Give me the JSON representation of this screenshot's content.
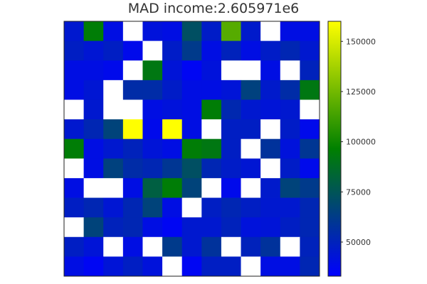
{
  "chart_data": {
    "type": "heatmap",
    "title": "MAD income:2.605971e6",
    "rows": 13,
    "cols": 13,
    "values": [
      [
        45000,
        95000,
        40000,
        null,
        42000,
        40000,
        72000,
        47000,
        118000,
        46000,
        null,
        40000,
        40000
      ],
      [
        48000,
        44000,
        48000,
        38000,
        null,
        47000,
        62000,
        40000,
        50000,
        40000,
        47000,
        52000,
        45000
      ],
      [
        40000,
        40000,
        38000,
        null,
        92000,
        43000,
        36000,
        42000,
        null,
        null,
        40000,
        null,
        50000
      ],
      [
        40000,
        44000,
        null,
        55000,
        55000,
        47000,
        40000,
        40000,
        43000,
        65000,
        46000,
        55000,
        92000
      ],
      [
        null,
        45000,
        null,
        null,
        40000,
        42000,
        40000,
        95000,
        53000,
        45000,
        43000,
        45000,
        null
      ],
      [
        45000,
        52000,
        66000,
        160000,
        38000,
        160000,
        40000,
        null,
        48000,
        48000,
        null,
        47000,
        38000
      ],
      [
        95000,
        40000,
        45000,
        50000,
        43000,
        40000,
        95000,
        92000,
        48000,
        null,
        58000,
        42000,
        60000
      ],
      [
        null,
        40000,
        65000,
        55000,
        52000,
        60000,
        72000,
        52000,
        47000,
        44000,
        null,
        47000,
        38000
      ],
      [
        40000,
        null,
        null,
        40000,
        80000,
        95000,
        66000,
        null,
        38000,
        null,
        46000,
        66000,
        62000
      ],
      [
        48000,
        52000,
        44000,
        52000,
        66000,
        40000,
        null,
        48000,
        52000,
        48000,
        45000,
        45000,
        52000
      ],
      [
        null,
        66000,
        50000,
        52000,
        40000,
        36000,
        45000,
        45000,
        50000,
        42000,
        43000,
        48000,
        52000
      ],
      [
        48000,
        43000,
        null,
        40000,
        null,
        62000,
        45000,
        58000,
        null,
        50000,
        58000,
        null,
        50000
      ],
      [
        40000,
        36000,
        43000,
        48000,
        42000,
        null,
        36000,
        48000,
        48000,
        null,
        40000,
        40000,
        52000
      ]
    ],
    "colorbar": {
      "min": 33000,
      "max": 160000,
      "ticks": [
        50000,
        75000,
        100000,
        125000,
        150000
      ],
      "tick_labels": [
        "50000",
        "75000",
        "100000",
        "125000",
        "150000"
      ],
      "colors": [
        "#0000ff",
        "#008000",
        "#ffff00"
      ]
    },
    "missing_color": "#ffffff",
    "grid": false
  }
}
